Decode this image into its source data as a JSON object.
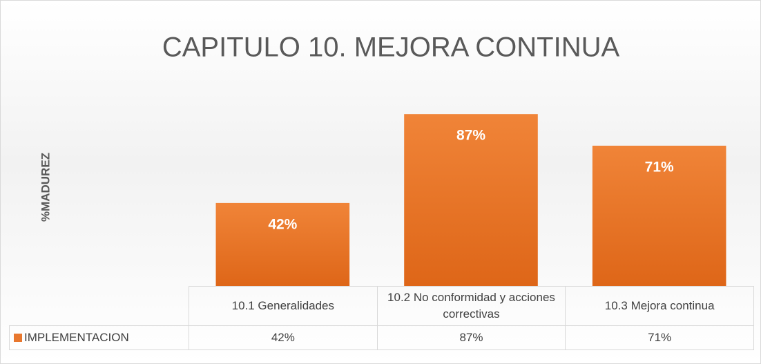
{
  "chart_data": {
    "type": "bar",
    "title": "CAPITULO 10. MEJORA CONTINUA",
    "y_label": "%MADUREZ",
    "categories": [
      "10.1  Generalidades",
      "10.2 No conformidad y acciones correctivas",
      "10.3 Mejora continua"
    ],
    "series": [
      {
        "name": "IMPLEMENTACION",
        "color": "#e8772e",
        "values": [
          42,
          87,
          71
        ],
        "value_labels": [
          "42%",
          "87%",
          "71%"
        ]
      }
    ],
    "ylim": [
      0,
      100
    ],
    "data_table": true
  }
}
